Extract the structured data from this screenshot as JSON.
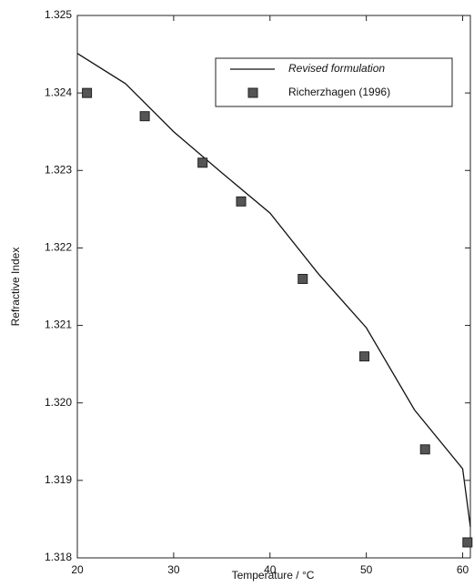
{
  "chart_data": {
    "type": "scatter",
    "x_label": "Temperature / °C",
    "y_label": "Refractive Index",
    "xlim": [
      20,
      60.8
    ],
    "ylim": [
      1.318,
      1.325
    ],
    "xticks": [
      20,
      30,
      40,
      50,
      60
    ],
    "yticks": [
      1.318,
      1.319,
      {
        "value": 1.32,
        "label": "1.320"
      },
      1.321,
      1.322,
      1.323,
      1.324,
      1.325
    ],
    "legend": "upper right",
    "series": [
      {
        "name": "Revised formulation",
        "type": "line",
        "color": "#111111",
        "x": [
          20,
          25,
          30,
          35,
          40,
          45,
          50,
          55,
          60,
          60.8
        ],
        "values": [
          1.32451,
          1.32412,
          1.3235,
          1.32297,
          1.32245,
          1.32167,
          1.32097,
          1.31991,
          1.31915,
          1.3184
        ]
      },
      {
        "name": "Richerzhagen (1996)",
        "type": "scatter",
        "color": "#555555",
        "x": [
          21,
          27,
          33,
          37,
          43.4,
          49.8,
          56.1,
          60.5
        ],
        "values": [
          1.324,
          1.3237,
          1.3231,
          1.3226,
          1.3216,
          1.3206,
          1.3194,
          1.3182
        ]
      }
    ]
  }
}
